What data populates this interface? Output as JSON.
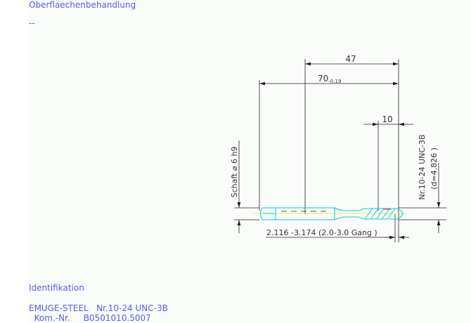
{
  "header": {
    "title": "Oberflaechenbehandlung",
    "value": "--"
  },
  "drawing": {
    "dim_47": "47",
    "dim_70": "70",
    "dim_70_tol": "-0.19",
    "dim_10": "10",
    "shank_label": "Schaft ⌀ 6 h9",
    "thread_label": "Nr.10-24 UNC-3B",
    "thread_diameter": "(d=4.826 )",
    "core_label": "2.116 -3.174 (2.0-3.0 Gang )",
    "colors": {
      "tool": "#00c8e8",
      "centerline": "#e8e800",
      "dimension": "#222222",
      "accent": "#ff3030"
    }
  },
  "footer": {
    "title": "Identifikation",
    "line1": "EMUGE-STEEL   Nr.10-24 UNC-3B",
    "line2": "  Kom.-Nr.     B0501010.5007"
  }
}
